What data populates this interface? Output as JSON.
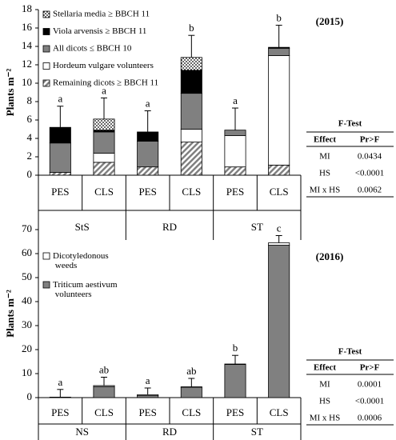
{
  "chart_data": [
    {
      "type": "bar",
      "stacked": true,
      "annotation": "(2015)",
      "ylabel": "Plants m⁻²",
      "categories": [
        "PES",
        "CLS",
        "PES",
        "CLS",
        "PES",
        "CLS"
      ],
      "groups": [
        "StS",
        "RD",
        "ST"
      ],
      "ylim": [
        0,
        18
      ],
      "yticks": [
        0,
        2,
        4,
        6,
        8,
        10,
        12,
        14,
        16,
        18
      ],
      "series": [
        {
          "name": "Remaining dicots ≥ BBCH 11",
          "color": "#808080",
          "pattern": "hatch",
          "values": [
            0.3,
            1.4,
            0.9,
            3.6,
            0.9,
            1.1
          ]
        },
        {
          "name": "Hordeum vulgare volunteers",
          "color": "#ffffff",
          "values": [
            0,
            1.0,
            0,
            1.4,
            3.4,
            11.9
          ]
        },
        {
          "name": "All dicots ≤ BBCH 10",
          "color": "#808080",
          "values": [
            3.2,
            2.3,
            2.8,
            3.9,
            0.6,
            0.8
          ]
        },
        {
          "name": "Viola arvensis ≥ BBCH 11",
          "color": "#000000",
          "values": [
            1.7,
            0.2,
            1.0,
            2.5,
            0,
            0.1
          ]
        },
        {
          "name": "Stellaria media ≥ BBCH 11",
          "color": "#000000",
          "pattern": "dots",
          "values": [
            0,
            1.2,
            0,
            1.4,
            0,
            0
          ]
        }
      ],
      "errors": [
        2.3,
        2.3,
        2.3,
        2.4,
        2.4,
        2.4
      ],
      "letters": [
        "a",
        "a",
        "a",
        "b",
        "a",
        "b"
      ]
    },
    {
      "type": "bar",
      "stacked": true,
      "annotation": "(2016)",
      "ylabel": "Plants m⁻²",
      "categories": [
        "PES",
        "CLS",
        "PES",
        "CLS",
        "PES",
        "CLS"
      ],
      "groups": [
        "NS",
        "RD",
        "ST"
      ],
      "ylim": [
        0,
        70
      ],
      "yticks": [
        0,
        10,
        20,
        30,
        40,
        50,
        60,
        70
      ],
      "series": [
        {
          "name": "Triticum aestivum volunteers",
          "color": "#808080",
          "values": [
            0.2,
            4.6,
            0.8,
            4.3,
            13.8,
            63.5
          ]
        },
        {
          "name": "Dicotyledonous weeds",
          "color": "#ffffff",
          "values": [
            0,
            0.4,
            0.4,
            0.2,
            0.2,
            1.0
          ]
        }
      ],
      "errors": [
        3.2,
        3.5,
        2.8,
        3.5,
        3.6,
        3.0
      ],
      "letters": [
        "a",
        "ab",
        "a",
        "ab",
        "b",
        "c"
      ]
    }
  ],
  "tables": [
    {
      "title": "F-Test",
      "columns": [
        "Effect",
        "Pr>F"
      ],
      "rows": [
        [
          "MI",
          "0.0434"
        ],
        [
          "HS",
          "<0.0001"
        ],
        [
          "MI x HS",
          "0.0062"
        ]
      ]
    },
    {
      "title": "F-Test",
      "columns": [
        "Effect",
        "Pr>F"
      ],
      "rows": [
        [
          "MI",
          "0.0001"
        ],
        [
          "HS",
          "<0.0001"
        ],
        [
          "MI x HS",
          "0.0006"
        ]
      ]
    }
  ]
}
